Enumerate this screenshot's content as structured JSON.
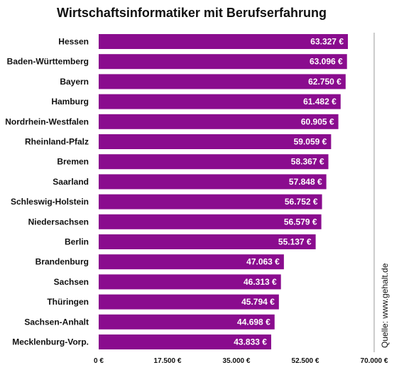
{
  "chart_data": {
    "type": "bar",
    "orientation": "horizontal",
    "title": "Wirtschaftsinformatiker mit Berufserfahrung",
    "categories": [
      "Hessen",
      "Baden-Württemberg",
      "Bayern",
      "Hamburg",
      "Nordrhein-Westfalen",
      "Rheinland-Pfalz",
      "Bremen",
      "Saarland",
      "Schleswig-Holstein",
      "Niedersachsen",
      "Berlin",
      "Brandenburg",
      "Sachsen",
      "Thüringen",
      "Sachsen-Anhalt",
      "Mecklenburg-Vorp."
    ],
    "values": [
      63327,
      63096,
      62750,
      61482,
      60905,
      59059,
      58367,
      57848,
      56752,
      56579,
      55137,
      47063,
      46313,
      45794,
      44698,
      43833
    ],
    "value_labels": [
      "63.327 €",
      "63.096 €",
      "62.750 €",
      "61.482 €",
      "60.905 €",
      "59.059 €",
      "58.367 €",
      "57.848 €",
      "56.752 €",
      "56.579 €",
      "55.137 €",
      "47.063 €",
      "46.313 €",
      "45.794 €",
      "44.698 €",
      "43.833 €"
    ],
    "xlim": [
      0,
      70000
    ],
    "xticks": [
      0,
      17500,
      35000,
      52500,
      70000
    ],
    "xtick_labels": [
      "0 €",
      "17.500 €",
      "35.000 €",
      "52.500 €",
      "70.000 €"
    ],
    "grid": "vertical line at 70.000 €",
    "source": "Quelle: www.gehalt.de",
    "bar_color": "#8a0c8e"
  }
}
